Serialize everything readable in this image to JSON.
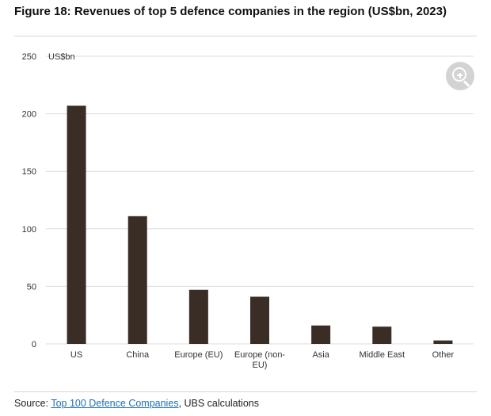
{
  "header": {
    "title": "Figure 18: Revenues of top 5 defence companies in the region (US$bn, 2023)"
  },
  "footer": {
    "source_prefix": "Source: ",
    "source_link": "Top 100 Defence Companies",
    "source_suffix": ", UBS calculations"
  },
  "zoom_button": {
    "icon": "zoom-in-icon"
  },
  "chart_data": {
    "type": "bar",
    "title": "Figure 18: Revenues of top 5 defence companies in the region (US$bn, 2023)",
    "unit_label": "US$bn",
    "categories": [
      "US",
      "China",
      "Europe (EU)",
      "Europe (non-EU)",
      "Asia",
      "Middle East",
      "Other"
    ],
    "category_lines": [
      [
        "US"
      ],
      [
        "China"
      ],
      [
        "Europe (EU)"
      ],
      [
        "Europe (non-",
        "EU)"
      ],
      [
        "Asia"
      ],
      [
        "Middle East"
      ],
      [
        "Other"
      ]
    ],
    "values": [
      207,
      111,
      47,
      41,
      16,
      15,
      3
    ],
    "ylim": [
      0,
      250
    ],
    "yticks": [
      0,
      50,
      100,
      150,
      200,
      250
    ],
    "grid": true,
    "bar_color": "#3a2d25",
    "grid_color": "#dcdcdc"
  }
}
